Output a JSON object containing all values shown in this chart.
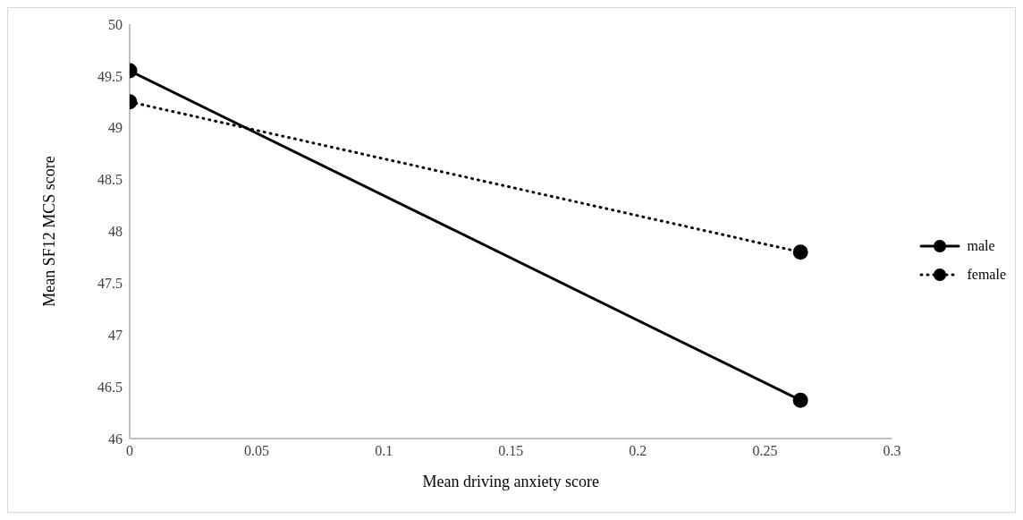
{
  "chart_data": {
    "type": "line",
    "xlabel": "Mean driving anxiety score",
    "ylabel": "Mean SF12 MCS score",
    "x": [
      0,
      0.264
    ],
    "series": [
      {
        "name": "male",
        "color": "#000000",
        "values": [
          49.55,
          46.37
        ],
        "line_style": "solid"
      },
      {
        "name": "female",
        "color": "#000000",
        "values": [
          49.25,
          47.8
        ],
        "line_style": "dotted"
      }
    ],
    "xlim": [
      0,
      0.3
    ],
    "xticks": [
      0,
      0.05,
      0.1,
      0.15,
      0.2,
      0.25,
      0.3
    ],
    "ylim": [
      46,
      50
    ],
    "yticks": [
      46,
      46.5,
      47,
      47.5,
      48,
      48.5,
      49,
      49.5,
      50
    ],
    "grid": false,
    "legend": "right",
    "marker": "circle"
  }
}
